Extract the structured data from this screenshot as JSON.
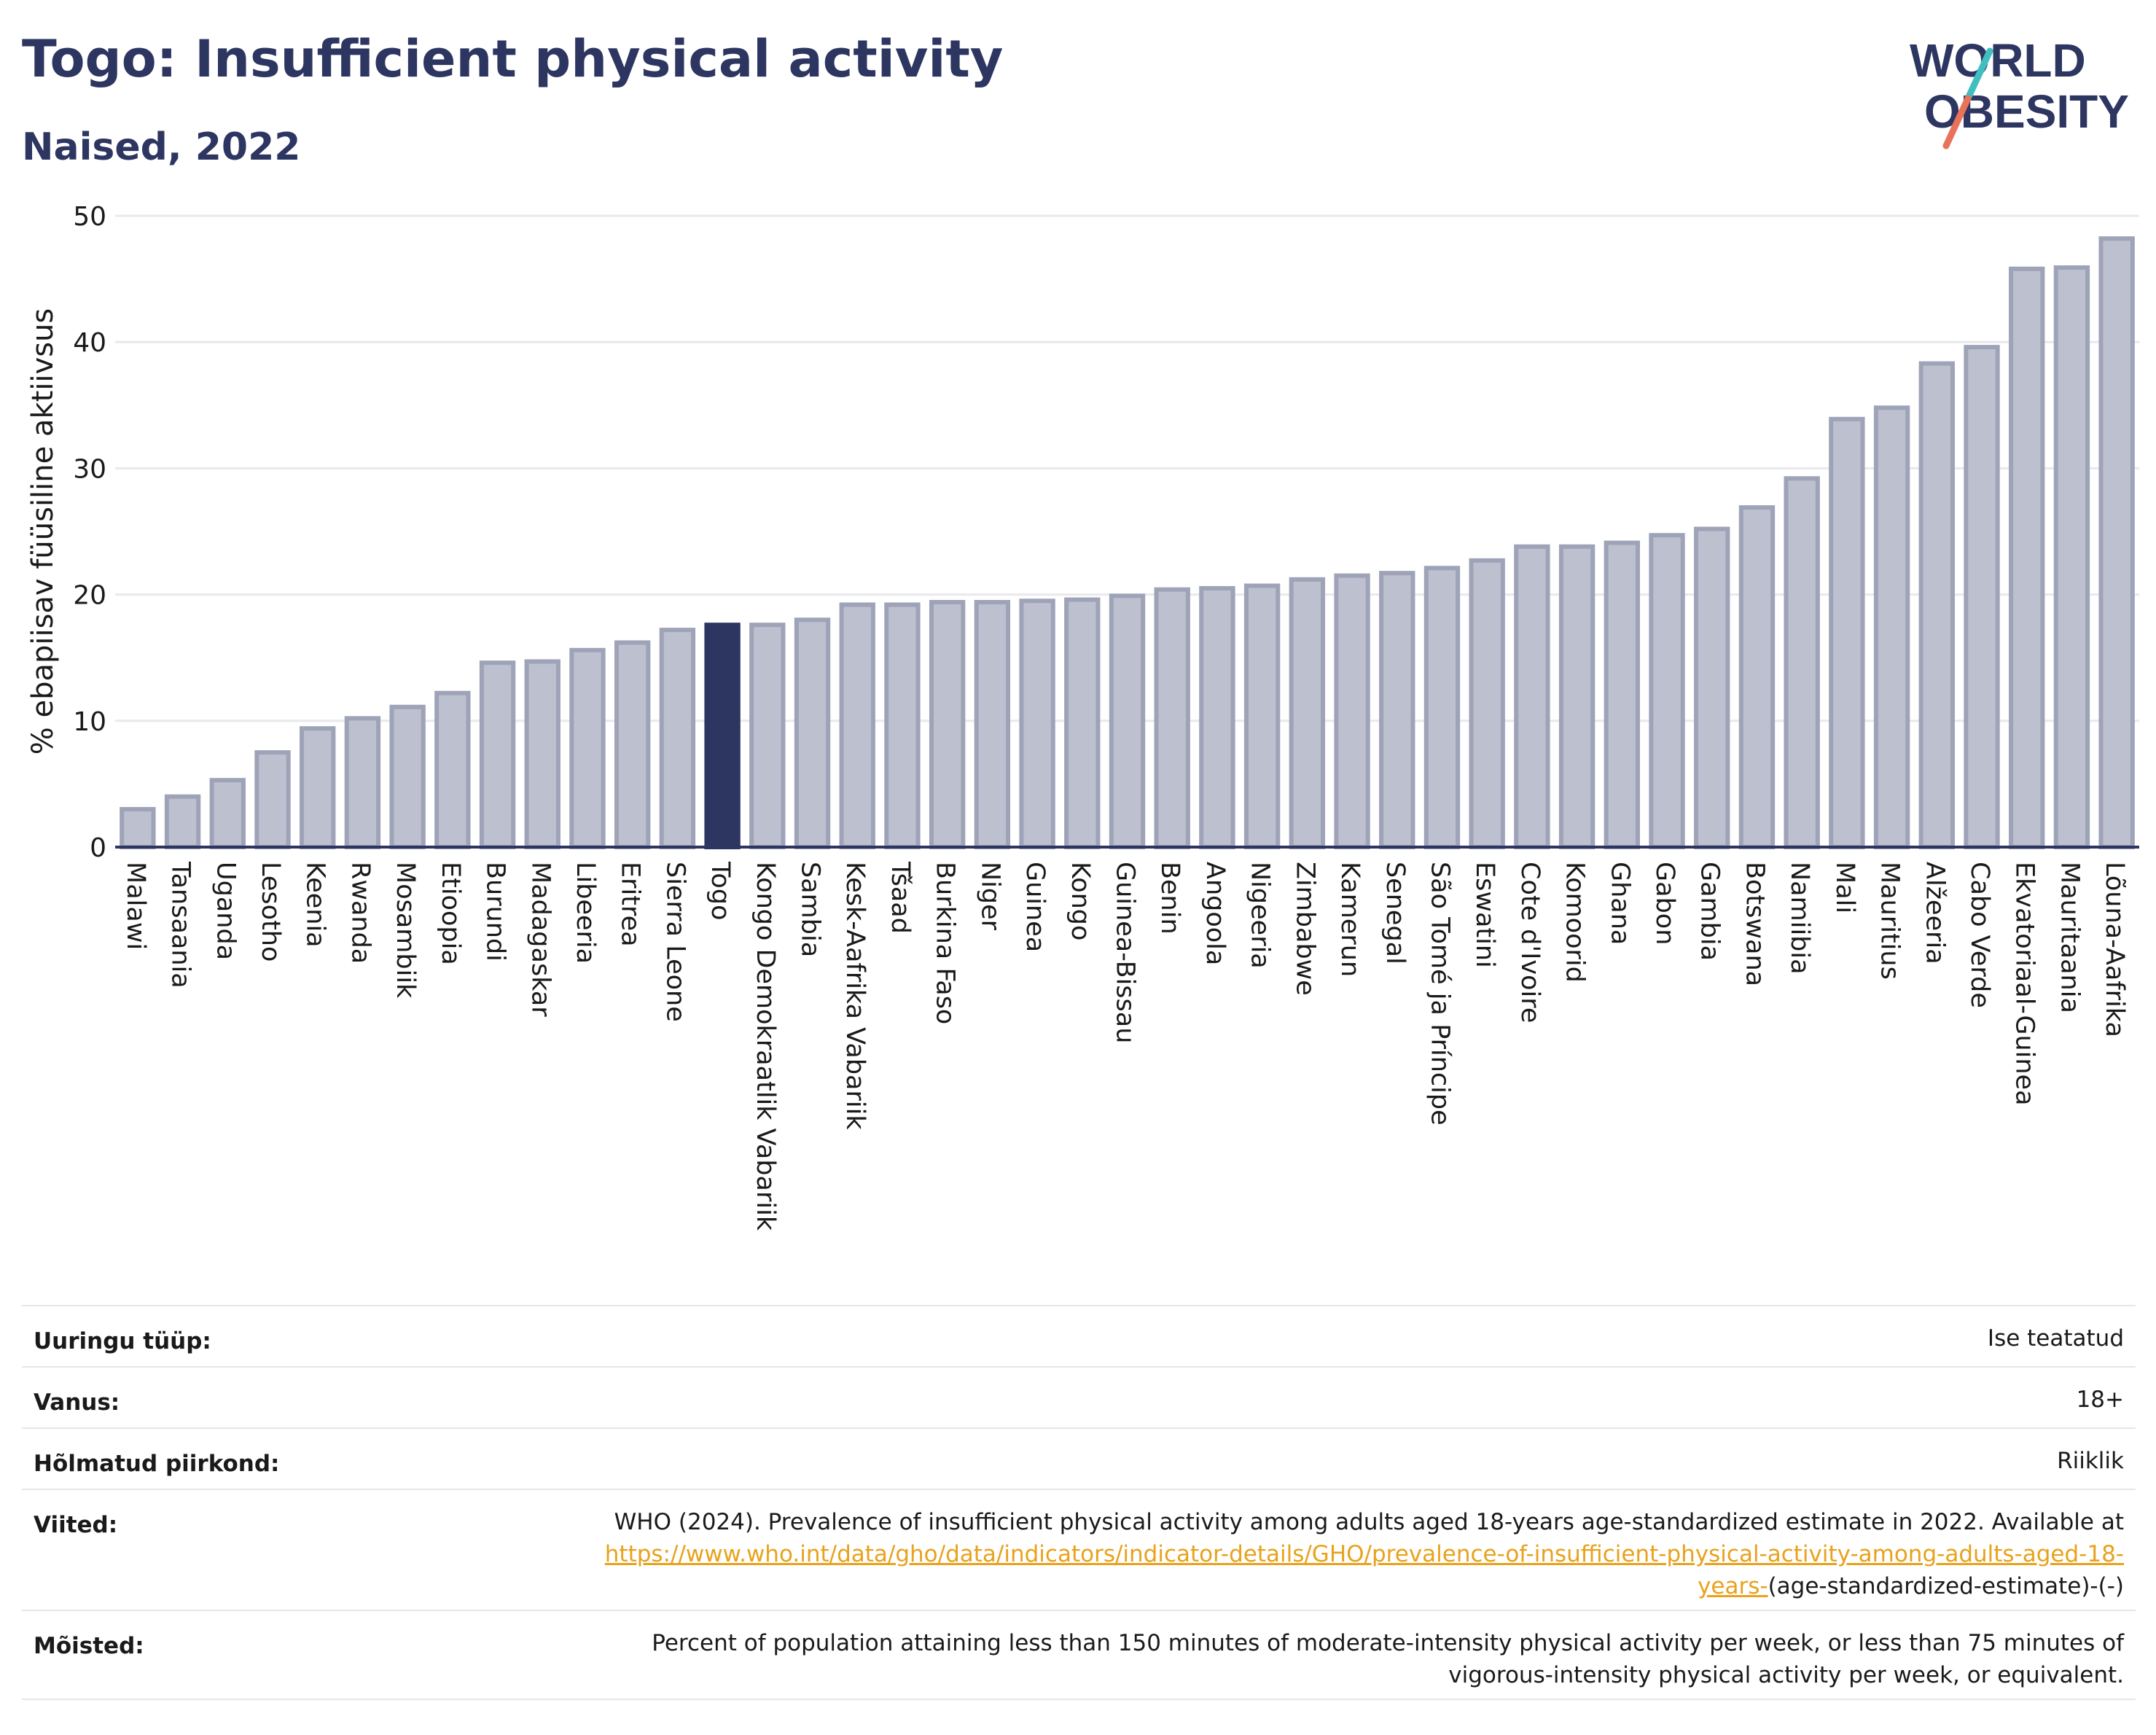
{
  "header": {
    "title": "Togo: Insufficient physical activity",
    "subtitle": "Naised, 2022"
  },
  "logo": {
    "line1": "WORLD",
    "line2": "OBESITY",
    "text_color": "#2d3561",
    "slash_colors": [
      "#3fbfbf",
      "#e8735a"
    ]
  },
  "colors": {
    "bar_fill": "#bcc0cf",
    "bar_stroke": "#9ea3b8",
    "highlight": "#2d3561",
    "grid": "#e8e8ee"
  },
  "chart_data": {
    "type": "bar",
    "title": "Togo: Insufficient physical activity",
    "subtitle": "Naised, 2022",
    "ylabel": "% ebapiisav füüsiline aktiivsus",
    "xlabel": "",
    "ylim": [
      0,
      50
    ],
    "yticks": [
      0,
      10,
      20,
      30,
      40,
      50
    ],
    "grid": true,
    "highlight_category": "Togo",
    "categories": [
      "Malawi",
      "Tansaania",
      "Uganda",
      "Lesotho",
      "Keenia",
      "Rwanda",
      "Mosambiik",
      "Etioopia",
      "Burundi",
      "Madagaskar",
      "Libeeria",
      "Eritrea",
      "Sierra Leone",
      "Togo",
      "Kongo Demokraatlik Vabariik",
      "Sambia",
      "Kesk-Aafrika Vabariik",
      "Tšaad",
      "Burkina Faso",
      "Niger",
      "Guinea",
      "Kongo",
      "Guinea-Bissau",
      "Benin",
      "Angoola",
      "Nigeeria",
      "Zimbabwe",
      "Kamerun",
      "Senegal",
      "São Tomé ja Príncipe",
      "Eswatini",
      "Cote d'Ivoire",
      "Komoorid",
      "Ghana",
      "Gabon",
      "Gambia",
      "Botswana",
      "Namiibia",
      "Mali",
      "Mauritius",
      "Alžeeria",
      "Cabo Verde",
      "Ekvatoriaal-Guinea",
      "Mauritaania",
      "Lõuna-Aafrika"
    ],
    "values": [
      3.0,
      4.0,
      5.3,
      7.5,
      9.4,
      10.2,
      11.1,
      12.2,
      14.6,
      14.7,
      15.6,
      16.2,
      17.2,
      17.6,
      17.6,
      18.0,
      19.2,
      19.2,
      19.4,
      19.4,
      19.5,
      19.6,
      19.9,
      20.4,
      20.5,
      20.7,
      21.2,
      21.5,
      21.7,
      22.1,
      22.7,
      23.8,
      23.8,
      24.1,
      24.7,
      25.2,
      26.9,
      29.2,
      33.9,
      34.8,
      38.3,
      39.6,
      45.8,
      45.9,
      48.2
    ]
  },
  "metadata": {
    "rows": [
      {
        "label": "Uuringu tüüp:",
        "value": "Ise teatatud"
      },
      {
        "label": "Vanus:",
        "value": "18+"
      },
      {
        "label": "Hõlmatud piirkond:",
        "value": "Riiklik"
      }
    ],
    "references": {
      "label": "Viited:",
      "text": "WHO (2024). Prevalence of insufficient physical activity among adults aged 18-years age-standardized estimate in 2022. Available at ",
      "link": "https://www.who.int/data/gho/data/indicators/indicator-details/GHO/prevalence-of-insufficient-physical-activity-among-adults-aged-18-years-",
      "suffix": "(age-standardized-estimate)-(-)"
    },
    "definitions": {
      "label": "Mõisted:",
      "value": "Percent of population attaining less than 150 minutes of moderate-intensity physical activity per week, or less than 75 minutes of vigorous-intensity physical activity per week, or equivalent."
    }
  }
}
